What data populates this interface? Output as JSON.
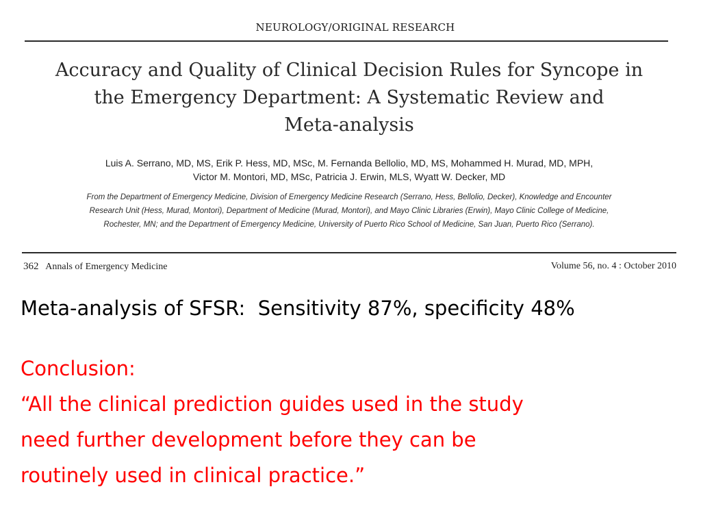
{
  "paper": {
    "section_label": "NEUROLOGY/ORIGINAL RESEARCH",
    "title_lines": [
      "Accuracy and Quality of Clinical Decision Rules for Syncope in",
      "the Emergency Department: A Systematic Review and",
      "Meta-analysis"
    ],
    "author_lines": [
      "Luis A. Serrano, MD, MS, Erik P. Hess, MD, MSc, M. Fernanda Bellolio, MD, MS, Mohammed H. Murad, MD, MPH,",
      "Victor M. Montori, MD, MSc, Patricia J. Erwin, MLS, Wyatt W. Decker, MD"
    ],
    "affiliation_lines": [
      "From the Department of Emergency Medicine, Division of Emergency Medicine Research (Serrano, Hess, Bellolio, Decker), Knowledge and Encounter",
      "Research Unit (Hess, Murad, Montori), Department of Medicine (Murad, Montori), and Mayo Clinic Libraries (Erwin), Mayo Clinic College of Medicine,",
      "Rochester, MN; and the Department of Emergency Medicine, University of Puerto Rico School of Medicine, San Juan, Puerto Rico (Serrano)."
    ],
    "footer": {
      "page_number": "362",
      "journal": "Annals of Emergency Medicine",
      "issue": "Volume 56, no. 4  :  October 2010"
    }
  },
  "slide": {
    "finding": "Meta-analysis of SFSR:  Sensitivity 87%, specificity 48%",
    "conclusion_lines": [
      "Conclusion:",
      "“All the clinical prediction guides used in the study",
      "need further development before they can be",
      "routinely used in clinical practice.”"
    ],
    "colors": {
      "finding_text": "#000000",
      "conclusion_text": "#ff0000"
    }
  }
}
